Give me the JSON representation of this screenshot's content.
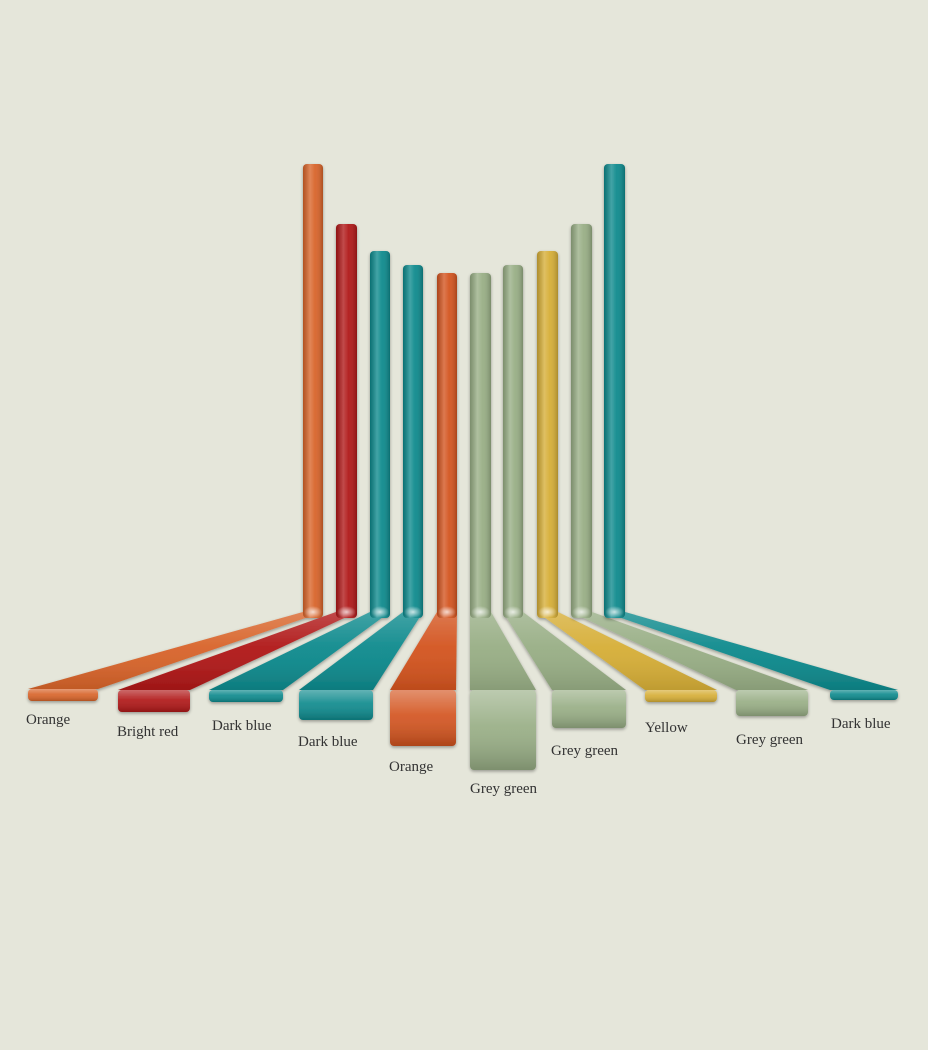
{
  "colors": {
    "background": "#e5e6da",
    "orange": "#d3541f",
    "orange_light": "#dd6a2a",
    "bright_red": "#b01818",
    "dark_blue": "#0e8a8d",
    "yellow": "#d6ae37",
    "grey_green": "#98ae85"
  },
  "bars": [
    {
      "label": "Orange",
      "color": "#d8642a"
    },
    {
      "label": "Bright red",
      "color": "#b01818"
    },
    {
      "label": "Dark blue",
      "color": "#0e8a8d"
    },
    {
      "label": "Dark blue",
      "color": "#0e8a8d"
    },
    {
      "label": "Orange",
      "color": "#d3541f"
    },
    {
      "label": "Grey green",
      "color": "#98ae85"
    },
    {
      "label": "Grey green",
      "color": "#98ae85"
    },
    {
      "label": "Yellow",
      "color": "#d6ae37"
    },
    {
      "label": "Grey green",
      "color": "#98ae85"
    },
    {
      "label": "Dark blue",
      "color": "#0e8a8d"
    }
  ]
}
